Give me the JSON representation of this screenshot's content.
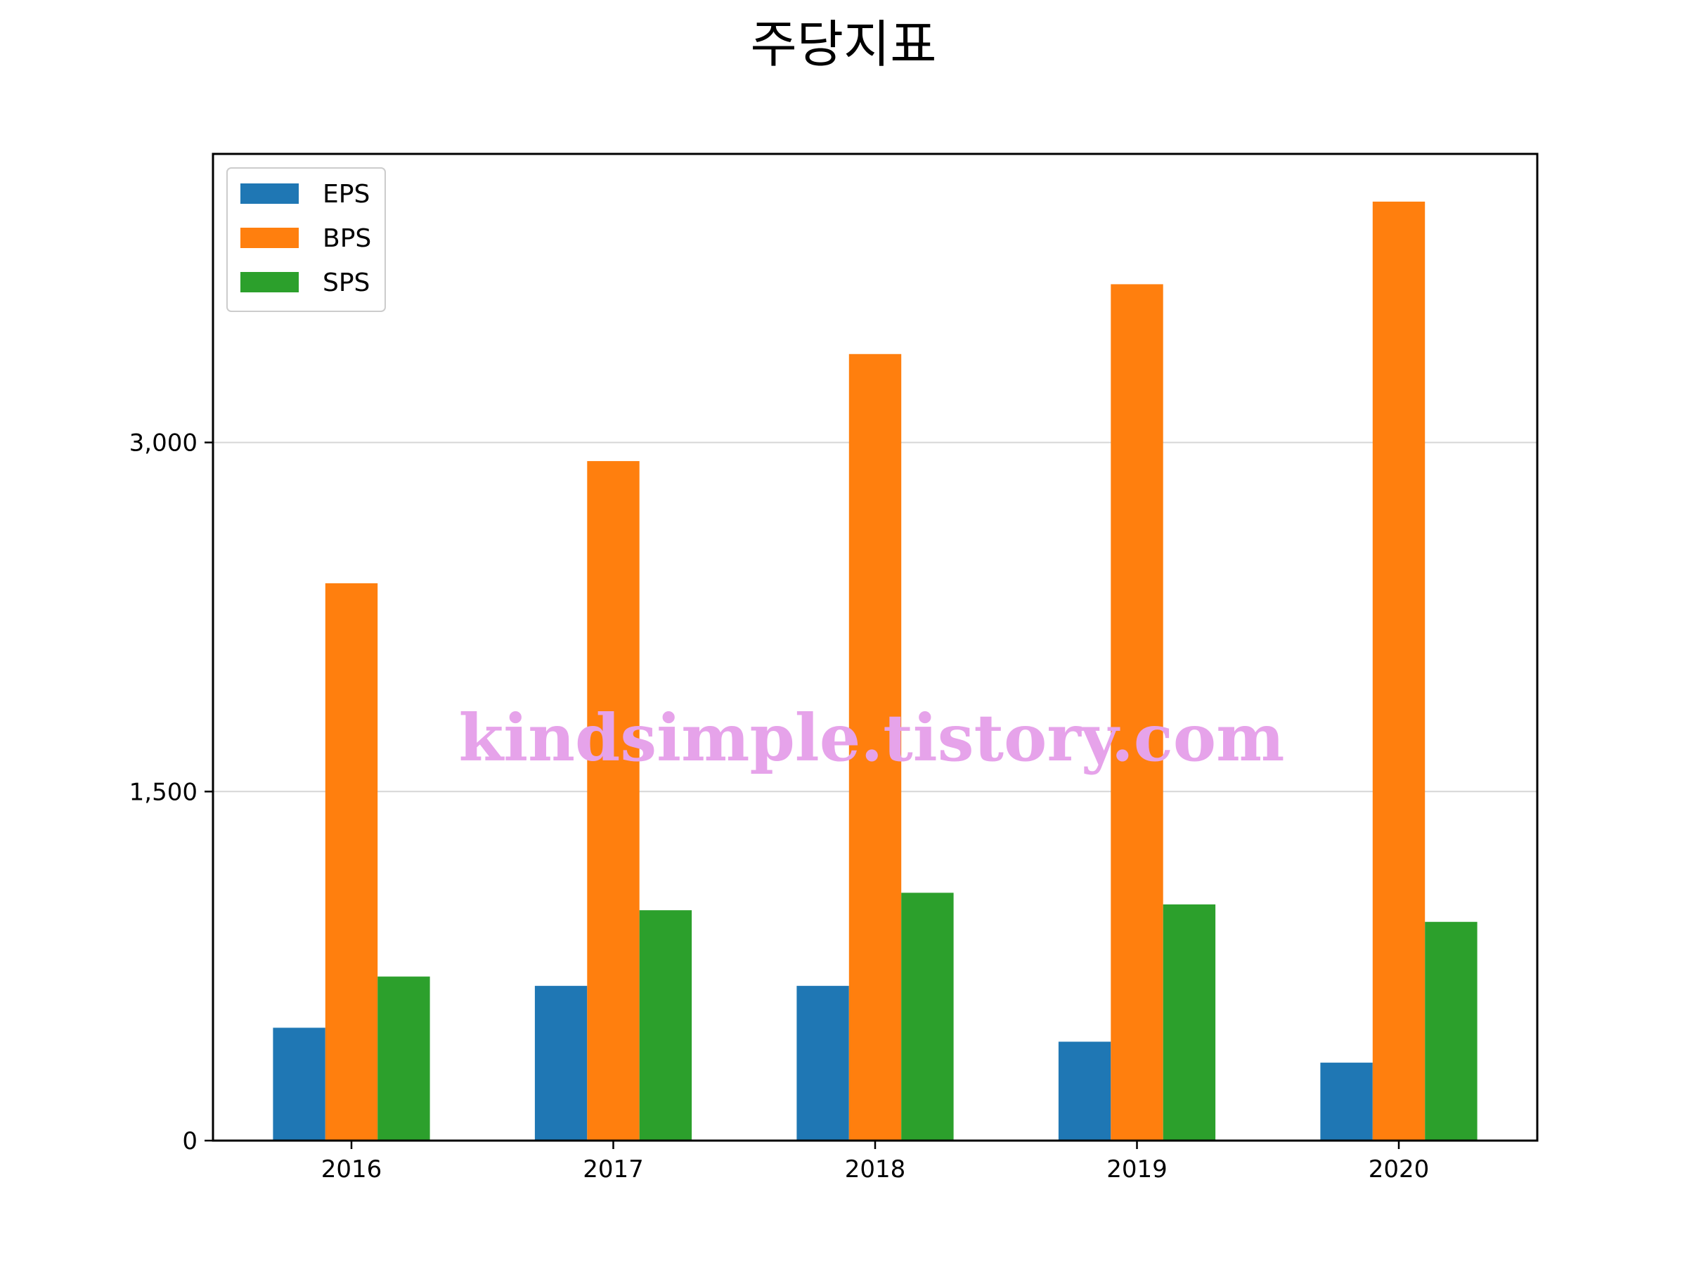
{
  "chart_data": {
    "type": "bar",
    "title": "주당지표",
    "xlabel": "",
    "ylabel": "",
    "categories": [
      "2016",
      "2017",
      "2018",
      "2019",
      "2020"
    ],
    "series": [
      {
        "name": "EPS",
        "color": "#1f77b4",
        "values": [
          485,
          665,
          665,
          425,
          335
        ]
      },
      {
        "name": "BPS",
        "color": "#ff7f0e",
        "values": [
          2395,
          2920,
          3380,
          3680,
          4035
        ]
      },
      {
        "name": "SPS",
        "color": "#2ca02c",
        "values": [
          705,
          990,
          1065,
          1015,
          940
        ]
      }
    ],
    "ylim": [
      0,
      4240
    ],
    "yticks": [
      0,
      1500,
      3000
    ],
    "ytick_labels": [
      "0",
      "1,500",
      "3,000"
    ],
    "grid": "horizontal",
    "legend_position": "upper-left",
    "watermark": "kindsimple.tistory.com"
  }
}
